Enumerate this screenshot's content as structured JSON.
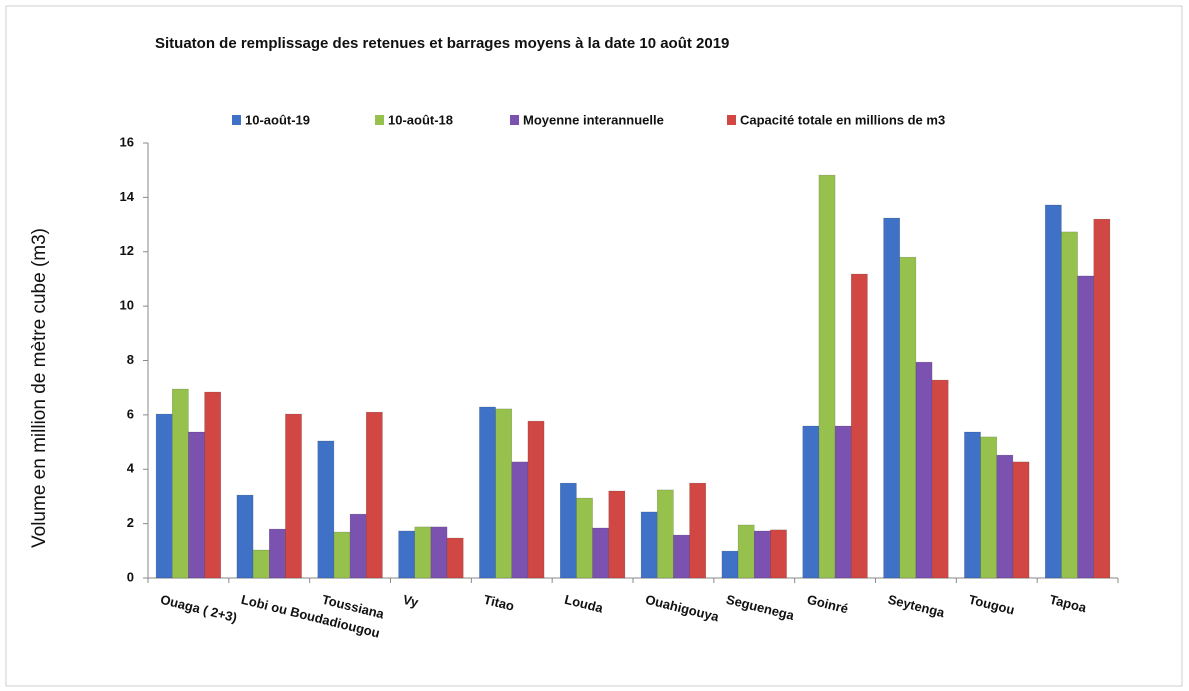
{
  "chart_data": {
    "type": "bar",
    "title": "Situaton de remplissage des retenues et barrages moyens à la date 10 août 2019",
    "y_label": "Volume en million de mètre cube (m3)",
    "categories": [
      "Ouaga ( 2+3)",
      "Lobi ou Boudadiougou",
      "Toussiana",
      "Vy",
      "Titao",
      "Louda",
      "Ouahigouya",
      "Seguenega",
      "Goinré",
      "Seytenga",
      "Tougou",
      "Tapoa"
    ],
    "series": [
      {
        "name": "10-août-19",
        "color": "#3f72c6",
        "values": [
          6.03,
          3.05,
          5.04,
          1.73,
          6.29,
          3.49,
          2.43,
          0.99,
          5.59,
          13.24,
          5.37,
          13.72
        ]
      },
      {
        "name": "10-août-18",
        "color": "#96c14d",
        "values": [
          6.95,
          1.03,
          1.69,
          1.88,
          6.22,
          2.94,
          3.24,
          1.95,
          14.82,
          11.8,
          5.19,
          12.73
        ]
      },
      {
        "name": "Moyenne interannuelle",
        "color": "#7c52b0",
        "values": [
          5.37,
          1.8,
          2.35,
          1.88,
          4.27,
          1.84,
          1.58,
          1.73,
          5.59,
          7.94,
          4.52,
          11.11
        ]
      },
      {
        "name": "Capacité totale en millions de m3",
        "color": "#d14744",
        "values": [
          6.84,
          6.03,
          6.1,
          1.47,
          5.77,
          3.2,
          3.49,
          1.77,
          11.18,
          7.28,
          4.27,
          13.2
        ]
      }
    ],
    "ylim": [
      0,
      16
    ],
    "yticks": [
      0,
      2,
      4,
      6,
      8,
      10,
      12,
      14,
      16
    ],
    "legend": "top"
  }
}
